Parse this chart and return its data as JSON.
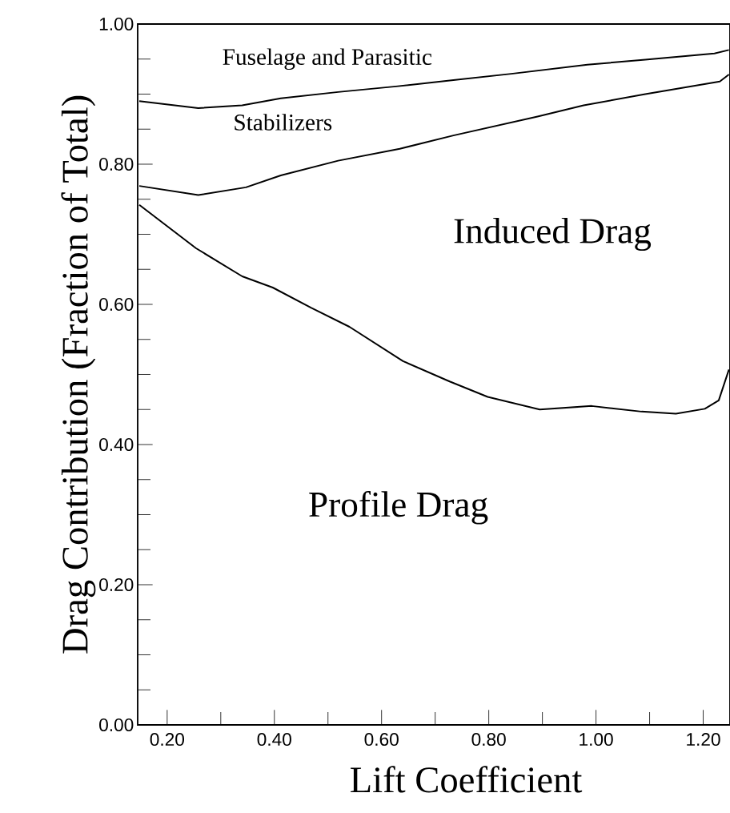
{
  "chart_data": {
    "type": "line",
    "xlabel": "Lift Coefficient",
    "ylabel": "Drag Contribution (Fraction of Total)",
    "xlim": [
      0.145,
      1.25
    ],
    "ylim": [
      0,
      1
    ],
    "xticks": [
      {
        "value": 0.2,
        "label": "0.20"
      },
      {
        "value": 0.4,
        "label": "0.40"
      },
      {
        "value": 0.6,
        "label": "0.60"
      },
      {
        "value": 0.8,
        "label": "0.80"
      },
      {
        "value": 1.0,
        "label": "1.00"
      },
      {
        "value": 1.2,
        "label": "1.20"
      }
    ],
    "yticks": [
      {
        "value": 0,
        "label": "0.00"
      },
      {
        "value": 0.2,
        "label": "0.20"
      },
      {
        "value": 0.4,
        "label": "0.40"
      },
      {
        "value": 0.6,
        "label": "0.60"
      },
      {
        "value": 0.8,
        "label": "0.80"
      },
      {
        "value": 1.0,
        "label": "1.00"
      }
    ],
    "series": [
      {
        "color": "#000000",
        "x": [
          0.148,
          0.258,
          0.34,
          0.412,
          0.519,
          0.627,
          0.734,
          0.842,
          0.984,
          1.092,
          1.221,
          1.248
        ],
        "values": [
          0.89,
          0.88,
          0.884,
          0.894,
          0.903,
          0.911,
          0.92,
          0.929,
          0.942,
          0.949,
          0.958,
          0.963
        ]
      },
      {
        "color": "#000000",
        "x": [
          0.148,
          0.258,
          0.347,
          0.412,
          0.519,
          0.634,
          0.734,
          0.891,
          0.977,
          1.092,
          1.231,
          1.248
        ],
        "values": [
          0.769,
          0.756,
          0.767,
          0.784,
          0.805,
          0.822,
          0.841,
          0.868,
          0.884,
          0.9,
          0.918,
          0.928
        ]
      },
      {
        "color": "#000000",
        "x": [
          0.148,
          0.254,
          0.34,
          0.397,
          0.469,
          0.54,
          0.64,
          0.727,
          0.798,
          0.895,
          0.992,
          1.085,
          1.149,
          1.203,
          1.229,
          1.248
        ],
        "values": [
          0.742,
          0.68,
          0.64,
          0.624,
          0.595,
          0.568,
          0.519,
          0.49,
          0.468,
          0.45,
          0.455,
          0.447,
          0.444,
          0.451,
          0.463,
          0.507
        ]
      }
    ],
    "annotations": [
      "Fuselage and Parasitic",
      "Stabilizers",
      "Induced Drag",
      "Profile Drag"
    ]
  }
}
